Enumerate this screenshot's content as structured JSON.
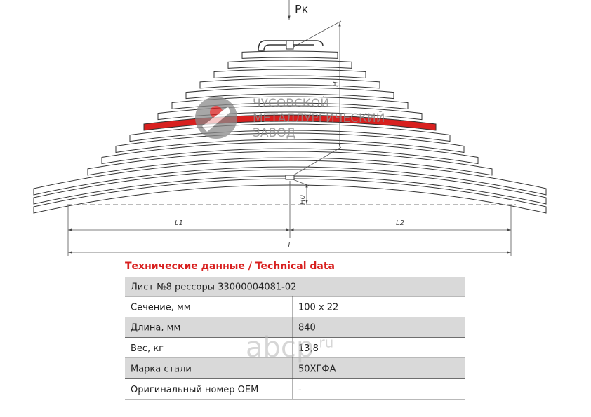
{
  "drawing": {
    "load": "Pк",
    "height": "H",
    "height0": "H0",
    "l1": "L1",
    "l2": "L2",
    "length": "L",
    "watermark": [
      "ЧУСОВСКОЙ",
      "МЕТАЛЛУРГИЧЕСКИЙ",
      "ЗАВОД"
    ]
  },
  "table": {
    "title": "Технические данные / Technical data",
    "rows": [
      [
        "Лист №8 рессоры 33000004081-02"
      ],
      [
        "Сечение, мм",
        "100 x 22"
      ],
      [
        "Длина, мм",
        "840"
      ],
      [
        "Вес, кг",
        "13,8"
      ],
      [
        "Марка стали",
        "50ХГФА"
      ],
      [
        "Оригинальный номер OEM",
        "-"
      ]
    ]
  },
  "stamp": {
    "brand": "abcp",
    "domain": ".ru"
  }
}
